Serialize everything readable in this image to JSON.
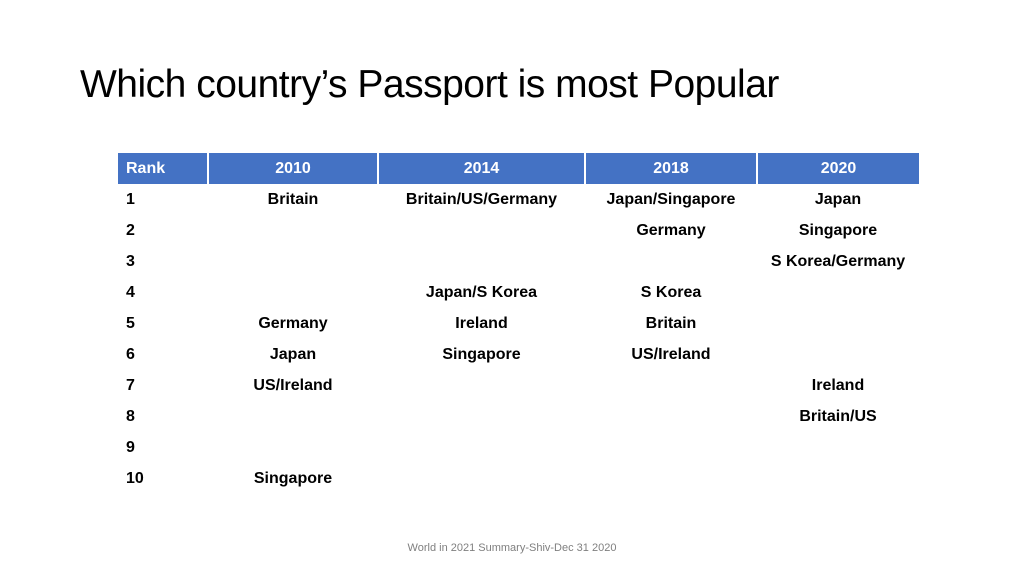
{
  "title": "Which country’s Passport is most Popular",
  "table": {
    "headers": [
      "Rank",
      "2010",
      "2014",
      "2018",
      "2020"
    ],
    "rows": [
      [
        "1",
        "Britain",
        "Britain/US/Germany",
        "Japan/Singapore",
        "Japan"
      ],
      [
        "2",
        "",
        "",
        "Germany",
        "Singapore"
      ],
      [
        "3",
        "",
        "",
        "",
        "S Korea/Germany"
      ],
      [
        "4",
        "",
        "Japan/S Korea",
        "S Korea",
        ""
      ],
      [
        "5",
        "Germany",
        "Ireland",
        "Britain",
        ""
      ],
      [
        "6",
        "Japan",
        "Singapore",
        "US/Ireland",
        ""
      ],
      [
        "7",
        "US/Ireland",
        "",
        "",
        "Ireland"
      ],
      [
        "8",
        "",
        "",
        "",
        "Britain/US"
      ],
      [
        "9",
        "",
        "",
        "",
        ""
      ],
      [
        "10",
        "Singapore",
        "",
        "",
        ""
      ]
    ]
  },
  "footer": "World in 2021 Summary-Shiv-Dec 31 2020",
  "colors": {
    "header_bg": "#4472c4",
    "header_text": "#ffffff",
    "footer_text": "#7f7f7f"
  }
}
